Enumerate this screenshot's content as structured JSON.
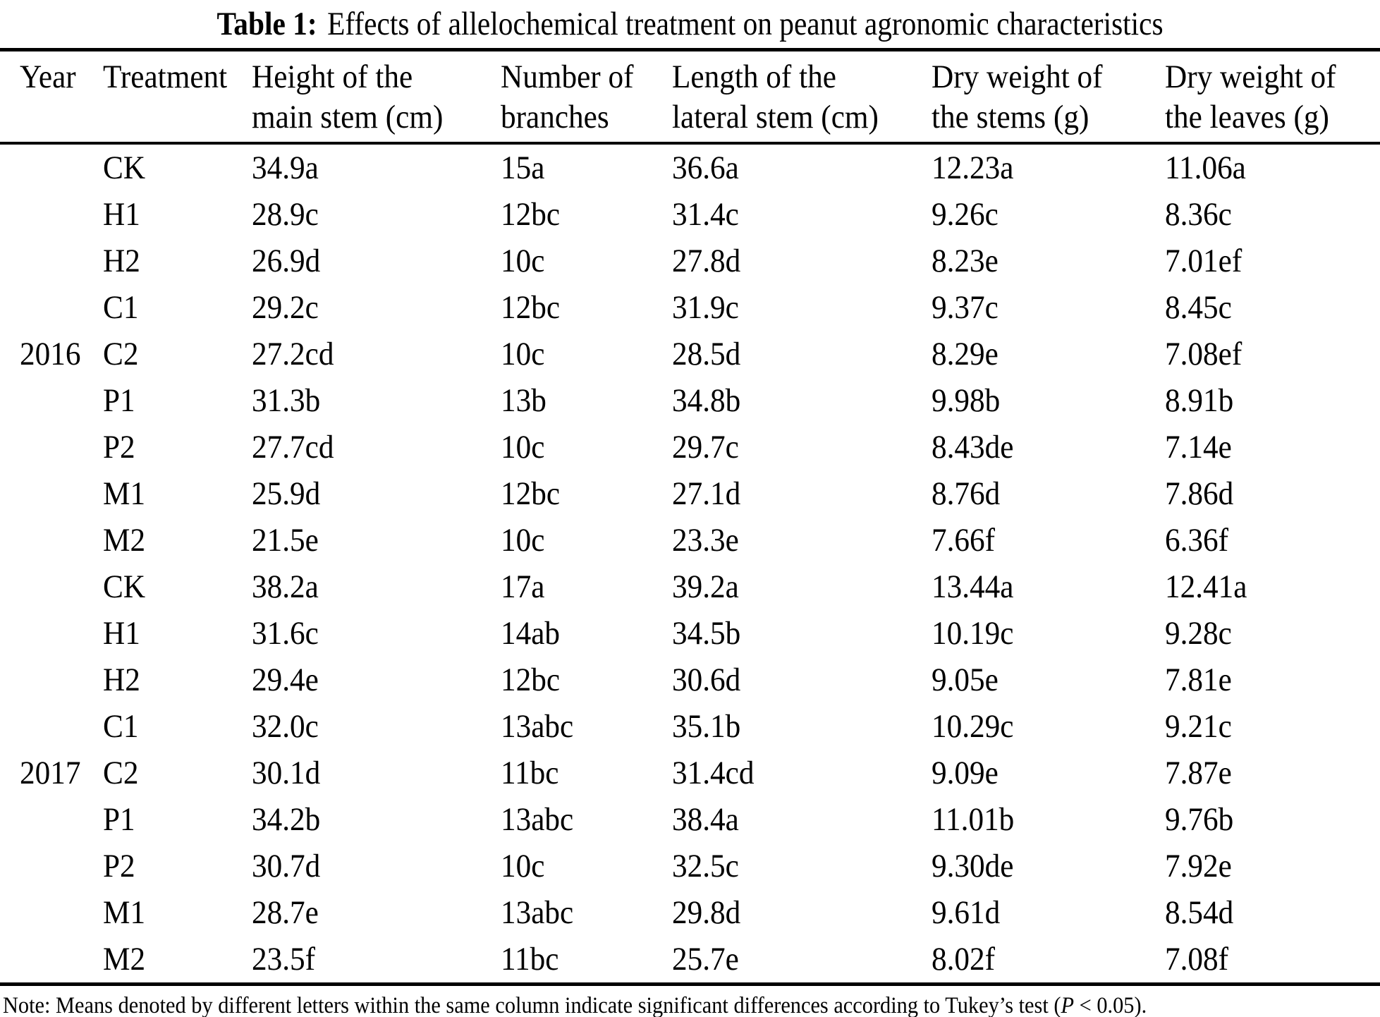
{
  "title": {
    "label": "Table 1:",
    "text": "Effects of allelochemical treatment on peanut agronomic characteristics"
  },
  "table": {
    "columns": [
      {
        "line1": "Year",
        "line2": ""
      },
      {
        "line1": "Treatment",
        "line2": ""
      },
      {
        "line1": "Height of the",
        "line2": "main stem (cm)"
      },
      {
        "line1": "Number of",
        "line2": "branches"
      },
      {
        "line1": "Length of the",
        "line2": "lateral stem (cm)"
      },
      {
        "line1": "Dry weight of",
        "line2": "the stems (g)"
      },
      {
        "line1": "Dry weight of",
        "line2": "the leaves (g)"
      }
    ],
    "rows": [
      {
        "year": "",
        "treatment": "CK",
        "main_stem_height": "34.9a",
        "branches": "15a",
        "lateral_stem_length": "36.6a",
        "stem_dry_weight": "12.23a",
        "leaf_dry_weight": "11.06a"
      },
      {
        "year": "",
        "treatment": "H1",
        "main_stem_height": "28.9c",
        "branches": "12bc",
        "lateral_stem_length": "31.4c",
        "stem_dry_weight": "9.26c",
        "leaf_dry_weight": "8.36c"
      },
      {
        "year": "",
        "treatment": "H2",
        "main_stem_height": "26.9d",
        "branches": "10c",
        "lateral_stem_length": "27.8d",
        "stem_dry_weight": "8.23e",
        "leaf_dry_weight": "7.01ef"
      },
      {
        "year": "",
        "treatment": "C1",
        "main_stem_height": "29.2c",
        "branches": "12bc",
        "lateral_stem_length": "31.9c",
        "stem_dry_weight": "9.37c",
        "leaf_dry_weight": "8.45c"
      },
      {
        "year": "2016",
        "treatment": "C2",
        "main_stem_height": "27.2cd",
        "branches": "10c",
        "lateral_stem_length": "28.5d",
        "stem_dry_weight": "8.29e",
        "leaf_dry_weight": "7.08ef"
      },
      {
        "year": "",
        "treatment": "P1",
        "main_stem_height": "31.3b",
        "branches": "13b",
        "lateral_stem_length": "34.8b",
        "stem_dry_weight": "9.98b",
        "leaf_dry_weight": "8.91b"
      },
      {
        "year": "",
        "treatment": "P2",
        "main_stem_height": "27.7cd",
        "branches": "10c",
        "lateral_stem_length": "29.7c",
        "stem_dry_weight": "8.43de",
        "leaf_dry_weight": "7.14e"
      },
      {
        "year": "",
        "treatment": "M1",
        "main_stem_height": "25.9d",
        "branches": "12bc",
        "lateral_stem_length": "27.1d",
        "stem_dry_weight": "8.76d",
        "leaf_dry_weight": "7.86d"
      },
      {
        "year": "",
        "treatment": "M2",
        "main_stem_height": "21.5e",
        "branches": "10c",
        "lateral_stem_length": "23.3e",
        "stem_dry_weight": "7.66f",
        "leaf_dry_weight": "6.36f"
      },
      {
        "year": "",
        "treatment": "CK",
        "main_stem_height": "38.2a",
        "branches": "17a",
        "lateral_stem_length": "39.2a",
        "stem_dry_weight": "13.44a",
        "leaf_dry_weight": "12.41a"
      },
      {
        "year": "",
        "treatment": "H1",
        "main_stem_height": "31.6c",
        "branches": "14ab",
        "lateral_stem_length": "34.5b",
        "stem_dry_weight": "10.19c",
        "leaf_dry_weight": "9.28c"
      },
      {
        "year": "",
        "treatment": "H2",
        "main_stem_height": "29.4e",
        "branches": "12bc",
        "lateral_stem_length": "30.6d",
        "stem_dry_weight": "9.05e",
        "leaf_dry_weight": "7.81e"
      },
      {
        "year": "",
        "treatment": "C1",
        "main_stem_height": "32.0c",
        "branches": "13abc",
        "lateral_stem_length": "35.1b",
        "stem_dry_weight": "10.29c",
        "leaf_dry_weight": "9.21c"
      },
      {
        "year": "2017",
        "treatment": "C2",
        "main_stem_height": "30.1d",
        "branches": "11bc",
        "lateral_stem_length": "31.4cd",
        "stem_dry_weight": "9.09e",
        "leaf_dry_weight": "7.87e"
      },
      {
        "year": "",
        "treatment": "P1",
        "main_stem_height": "34.2b",
        "branches": "13abc",
        "lateral_stem_length": "38.4a",
        "stem_dry_weight": "11.01b",
        "leaf_dry_weight": "9.76b"
      },
      {
        "year": "",
        "treatment": "P2",
        "main_stem_height": "30.7d",
        "branches": "10c",
        "lateral_stem_length": "32.5c",
        "stem_dry_weight": "9.30de",
        "leaf_dry_weight": "7.92e"
      },
      {
        "year": "",
        "treatment": "M1",
        "main_stem_height": "28.7e",
        "branches": "13abc",
        "lateral_stem_length": "29.8d",
        "stem_dry_weight": "9.61d",
        "leaf_dry_weight": "8.54d"
      },
      {
        "year": "",
        "treatment": "M2",
        "main_stem_height": "23.5f",
        "branches": "11bc",
        "lateral_stem_length": "25.7e",
        "stem_dry_weight": "8.02f",
        "leaf_dry_weight": "7.08f"
      }
    ]
  },
  "note": {
    "prefix": "Note: Means denoted by different letters within the same column indicate significant differences according to Tukey’s test (",
    "italic": "P",
    "suffix": " < 0.05)."
  }
}
